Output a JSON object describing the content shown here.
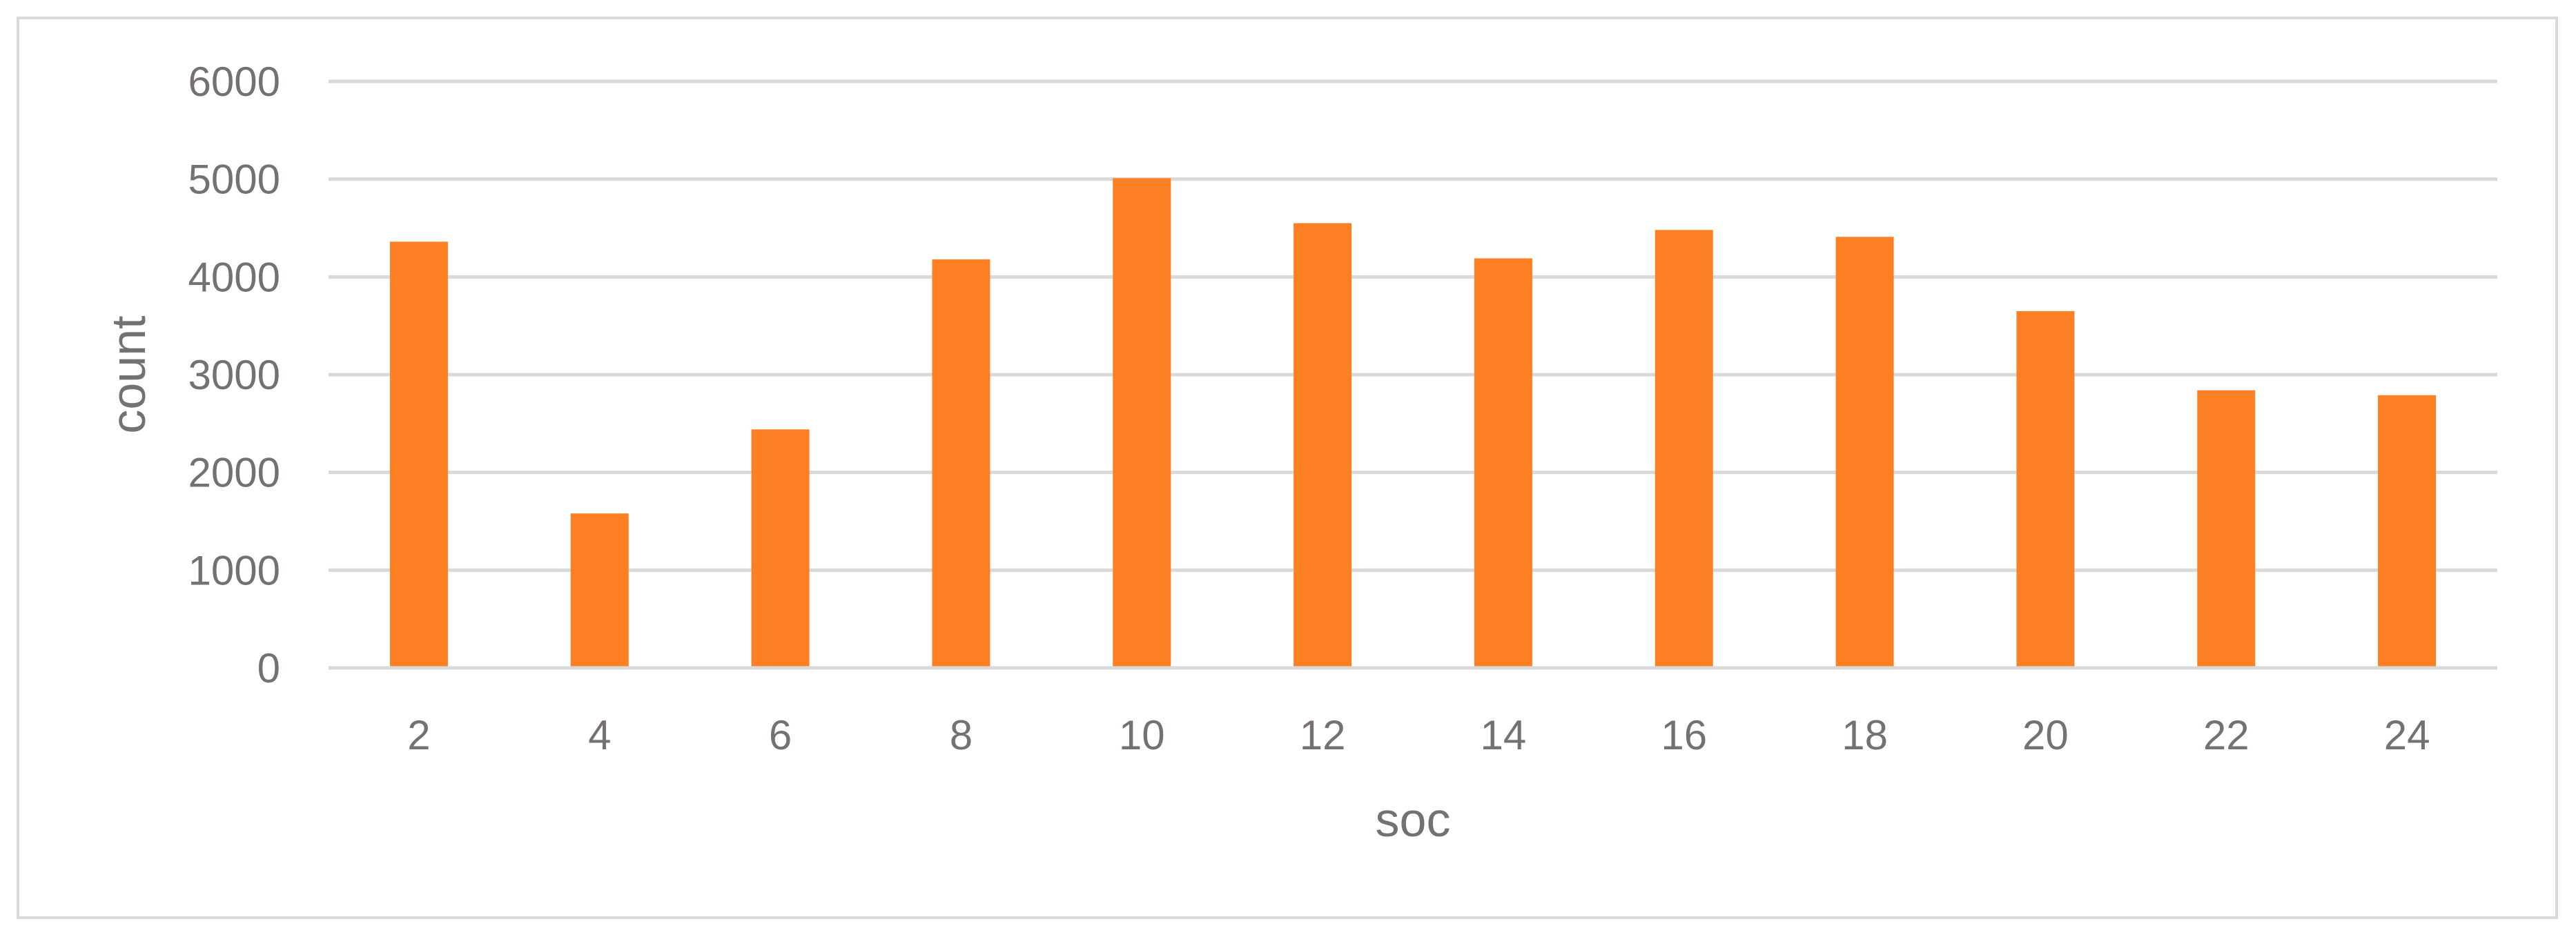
{
  "chart_data": {
    "type": "bar",
    "title": "",
    "xlabel": "soc",
    "ylabel": "count",
    "categories": [
      "2",
      "4",
      "6",
      "8",
      "10",
      "12",
      "14",
      "16",
      "18",
      "20",
      "22",
      "24"
    ],
    "series": [
      {
        "values": [
          4360,
          1580,
          2440,
          4180,
          5010,
          4550,
          4190,
          4480,
          4410,
          3650,
          2840,
          2790
        ]
      }
    ],
    "ylim": [
      0,
      6000
    ],
    "yticks": [
      0,
      1000,
      2000,
      3000,
      4000,
      5000,
      6000
    ],
    "grid": true,
    "legend": "none",
    "colors": {
      "bar": "#fd7f24",
      "grid": "#d9d9d9",
      "text": "#767171",
      "frame": "#d9d9d9"
    }
  }
}
